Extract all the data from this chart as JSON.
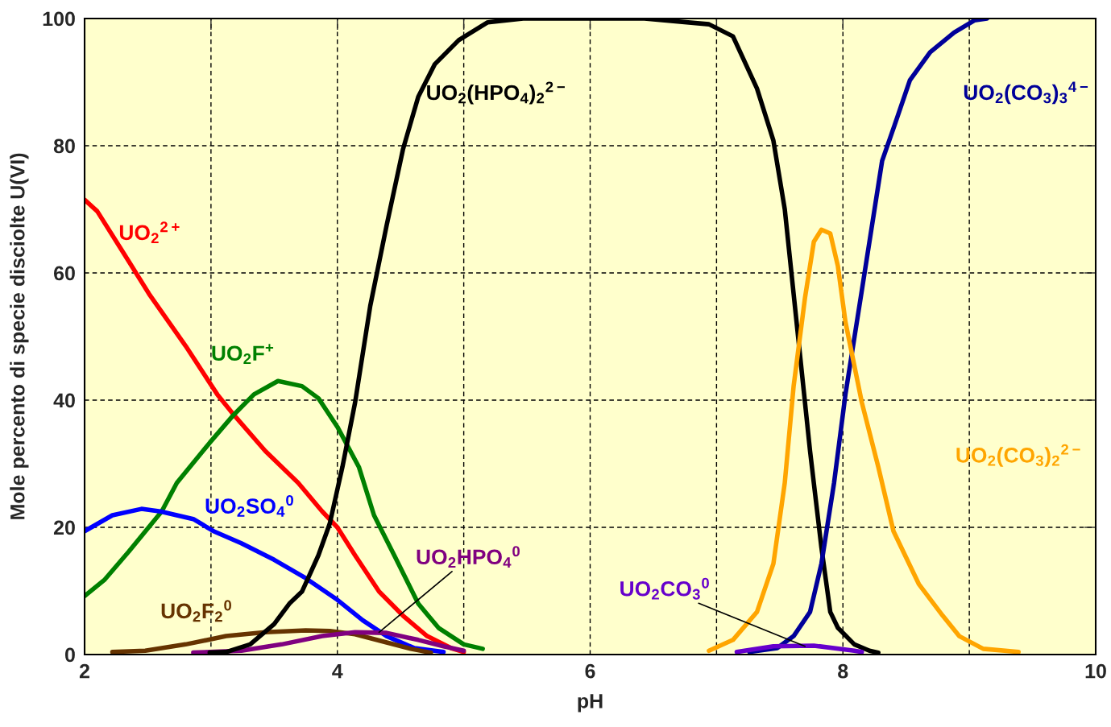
{
  "chart_data": {
    "type": "line",
    "xlabel": "pH",
    "ylabel": "Mole percento di specie disciolte U(VI)",
    "xlim": [
      2,
      10
    ],
    "ylim": [
      0,
      100
    ],
    "xticks": [
      2,
      {
        "value": 3,
        "label": null
      },
      4,
      {
        "value": 5,
        "label": null
      },
      6,
      {
        "value": 7,
        "label": null
      },
      8,
      {
        "value": 9,
        "label": null
      },
      10
    ],
    "yticks": [
      0,
      20,
      40,
      60,
      80,
      100
    ],
    "grid": true,
    "legend": false,
    "marker": "none",
    "line_style": "solid",
    "series": [
      {
        "name": "UO$_{2}$$^{2+}$",
        "color": "#ff0000",
        "x": [
          2,
          2.1,
          2.29,
          2.35,
          2.51,
          2.8,
          3.05,
          3.18,
          3.43,
          3.69,
          3.88,
          4.0,
          4.14,
          4.33,
          4.52,
          4.71,
          4.9,
          5.0
        ],
        "values": [
          71.5,
          69.7,
          63.7,
          61.8,
          56.7,
          48.5,
          40.9,
          37.7,
          32,
          27,
          22.5,
          20,
          15.6,
          9.9,
          6.1,
          2.9,
          1,
          0.4
        ]
      },
      {
        "name": "UO$_{2}$F$^{+}$",
        "color": "#008000",
        "x": [
          2,
          2.16,
          2.35,
          2.61,
          2.73,
          2.99,
          3.18,
          3.34,
          3.53,
          3.72,
          3.85,
          4.0,
          4.17,
          4.29,
          4.45,
          4.64,
          4.8,
          5.0,
          5.15
        ],
        "values": [
          9.2,
          11.8,
          16.2,
          22.5,
          27,
          33.3,
          37.7,
          40.9,
          43,
          42.2,
          40.3,
          35.8,
          29.5,
          21.9,
          15.6,
          8,
          4.2,
          1.6,
          0.9
        ]
      },
      {
        "name": "UO$_{2}$SO$_{4}$$^{0}$",
        "color": "#0000ff",
        "x": [
          2,
          2.22,
          2.45,
          2.6,
          2.86,
          3.02,
          3.24,
          3.5,
          3.75,
          4.0,
          4.2,
          4.39,
          4.61,
          4.84
        ],
        "values": [
          19.4,
          21.9,
          22.9,
          22.5,
          21.3,
          19.4,
          17.5,
          14.9,
          12,
          8.6,
          5.4,
          2.9,
          1,
          0.4
        ]
      },
      {
        "name": "UO$_{2}$F$_{2}$$^{0}$",
        "color": "#663300",
        "x": [
          2.22,
          2.48,
          2.8,
          3.12,
          3.43,
          3.75,
          3.94,
          4.14,
          4.39,
          4.58,
          4.74
        ],
        "values": [
          0.4,
          0.6,
          1.6,
          2.9,
          3.5,
          3.8,
          3.7,
          3.2,
          1.9,
          0.9,
          0.3
        ]
      },
      {
        "name": "UO$_{2}$HPO$_{4}$$^{0}$",
        "color": "#800080",
        "x": [
          2.86,
          3.24,
          3.56,
          3.88,
          4.14,
          4.39,
          4.64,
          4.84,
          5.0
        ],
        "values": [
          0.3,
          0.6,
          1.6,
          2.9,
          3.5,
          3.4,
          2.3,
          1.3,
          0.6
        ]
      },
      {
        "name": "UO$_{2}$(HPO$_{4}$)$_{2}$$^{2−}$",
        "color": "#000000",
        "x": [
          2.99,
          3.12,
          3.31,
          3.5,
          3.62,
          3.72,
          3.85,
          3.94,
          4.04,
          4.14,
          4.26,
          4.39,
          4.52,
          4.64,
          4.77,
          4.96,
          5.19,
          5.47,
          6.43,
          6.94,
          7.13,
          7.32,
          7.45,
          7.54,
          7.64,
          7.74,
          7.83,
          7.9,
          7.96,
          8.09,
          8.21,
          8.28
        ],
        "values": [
          0.3,
          0.4,
          1.6,
          4.8,
          8,
          9.9,
          15.6,
          20.6,
          29.5,
          39.6,
          54.8,
          67.5,
          79.5,
          87.7,
          92.8,
          96.6,
          99.4,
          100,
          100,
          99.1,
          97.2,
          89,
          80.8,
          70,
          51,
          32,
          16.8,
          6.7,
          4.2,
          1.6,
          0.6,
          0.3
        ]
      },
      {
        "name": "UO$_{2}$(CO$_{3}$)$_{3}$$^{4−}$",
        "color": "#000099",
        "x": [
          7.26,
          7.48,
          7.61,
          7.74,
          7.83,
          7.93,
          8.02,
          8.15,
          8.31,
          8.41,
          8.53,
          8.69,
          8.88,
          9.04,
          9.14
        ],
        "values": [
          0.4,
          1,
          2.9,
          6.7,
          14.3,
          27,
          40.9,
          57.3,
          77.6,
          83.3,
          90.3,
          94.7,
          97.8,
          99.7,
          100
        ]
      },
      {
        "name": "UO$_{2}$(CO$_{3}$)$_{2}$$^{2−}$",
        "color": "#ffa500",
        "x": [
          6.94,
          7.13,
          7.32,
          7.45,
          7.54,
          7.61,
          7.7,
          7.77,
          7.83,
          7.9,
          7.96,
          8.02,
          8.15,
          8.28,
          8.4,
          8.6,
          8.79,
          8.92,
          9.11,
          9.39
        ],
        "values": [
          0.6,
          2.3,
          6.7,
          14.3,
          27,
          42.2,
          56.1,
          64.9,
          66.8,
          66.2,
          61.1,
          52.3,
          39.6,
          29.5,
          19.4,
          11.1,
          6.1,
          2.9,
          0.9,
          0.4
        ]
      },
      {
        "name": "UO$_{2}$CO$_{3}$$^{0}$",
        "color": "#6600cc",
        "x": [
          7.16,
          7.45,
          7.77,
          8.09,
          8.15
        ],
        "values": [
          0.4,
          1.3,
          1.4,
          0.6,
          0.4
        ]
      }
    ]
  }
}
